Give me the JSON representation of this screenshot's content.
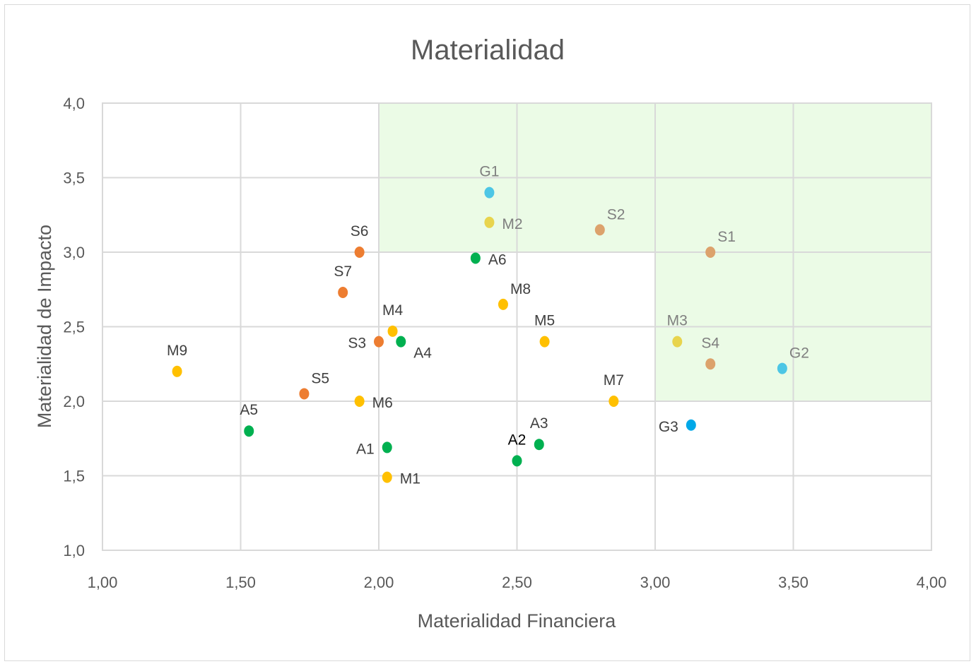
{
  "chart_data": {
    "type": "scatter",
    "title": "Materialidad",
    "xlabel": "Materialidad Financiera",
    "ylabel": "Materialidad de Impacto",
    "xlim": [
      1.0,
      4.0
    ],
    "ylim": [
      1.0,
      4.0
    ],
    "x_ticks": [
      "1,00",
      "1,50",
      "2,00",
      "2,50",
      "3,00",
      "3,50",
      "4,00"
    ],
    "y_ticks": [
      "1,0",
      "1,5",
      "2,0",
      "2,5",
      "3,0",
      "3,5",
      "4,0"
    ],
    "grid": true,
    "legend": "none",
    "highlight_regions": [
      {
        "x_range": [
          2.0,
          4.0
        ],
        "y_range": [
          3.0,
          4.0
        ],
        "color": "#ebfbe6"
      },
      {
        "x_range": [
          3.0,
          4.0
        ],
        "y_range": [
          2.0,
          3.0
        ],
        "color": "#ebfbe6"
      }
    ],
    "colors": {
      "green": "#00b050",
      "yellow_orange": "#ffc000",
      "orange": "#ed7d31",
      "light_yellow": "#e8d44d",
      "tan": "#dca26c",
      "light_blue": "#4dc6e5",
      "blue": "#00a8e8",
      "label_dark": "#404040",
      "label_muted": "#7f7f7f"
    },
    "points": [
      {
        "label": "G1",
        "x": 2.4,
        "y": 3.4,
        "color": "#4dc6e5",
        "label_pos": "top",
        "label_color": "#7f7f7f"
      },
      {
        "label": "M2",
        "x": 2.4,
        "y": 3.2,
        "color": "#e8d44d",
        "label_pos": "right",
        "label_color": "#7f7f7f"
      },
      {
        "label": "S2",
        "x": 2.8,
        "y": 3.15,
        "color": "#dca26c",
        "label_pos": "top-right",
        "label_color": "#7f7f7f"
      },
      {
        "label": "S1",
        "x": 3.2,
        "y": 3.0,
        "color": "#dca26c",
        "label_pos": "top-right",
        "label_color": "#7f7f7f"
      },
      {
        "label": "S6",
        "x": 1.93,
        "y": 3.0,
        "color": "#ed7d31",
        "label_pos": "top",
        "label_color": "#404040"
      },
      {
        "label": "A6",
        "x": 2.35,
        "y": 2.96,
        "color": "#00b050",
        "label_pos": "right",
        "label_color": "#404040"
      },
      {
        "label": "S7",
        "x": 1.87,
        "y": 2.73,
        "color": "#ed7d31",
        "label_pos": "top",
        "label_color": "#404040"
      },
      {
        "label": "M8",
        "x": 2.45,
        "y": 2.65,
        "color": "#ffc000",
        "label_pos": "top-right",
        "label_color": "#404040"
      },
      {
        "label": "M4",
        "x": 2.05,
        "y": 2.47,
        "color": "#ffc000",
        "label_pos": "top",
        "label_color": "#404040"
      },
      {
        "label": "M5",
        "x": 2.6,
        "y": 2.4,
        "color": "#ffc000",
        "label_pos": "top",
        "label_color": "#404040"
      },
      {
        "label": "S3",
        "x": 2.0,
        "y": 2.4,
        "color": "#ed7d31",
        "label_pos": "left",
        "label_color": "#404040"
      },
      {
        "label": "A4",
        "x": 2.08,
        "y": 2.4,
        "color": "#00b050",
        "label_pos": "bottom-right",
        "label_color": "#404040"
      },
      {
        "label": "M3",
        "x": 3.08,
        "y": 2.4,
        "color": "#e8d44d",
        "label_pos": "top",
        "label_color": "#7f7f7f"
      },
      {
        "label": "S4",
        "x": 3.2,
        "y": 2.25,
        "color": "#dca26c",
        "label_pos": "top",
        "label_color": "#7f7f7f"
      },
      {
        "label": "G2",
        "x": 3.46,
        "y": 2.22,
        "color": "#4dc6e5",
        "label_pos": "top-right",
        "label_color": "#7f7f7f"
      },
      {
        "label": "M9",
        "x": 1.27,
        "y": 2.2,
        "color": "#ffc000",
        "label_pos": "top",
        "label_color": "#404040"
      },
      {
        "label": "S5",
        "x": 1.73,
        "y": 2.05,
        "color": "#ed7d31",
        "label_pos": "top-right",
        "label_color": "#404040"
      },
      {
        "label": "M6",
        "x": 1.93,
        "y": 2.0,
        "color": "#ffc000",
        "label_pos": "right",
        "label_color": "#404040"
      },
      {
        "label": "M7",
        "x": 2.85,
        "y": 2.0,
        "color": "#ffc000",
        "label_pos": "top",
        "label_color": "#404040"
      },
      {
        "label": "G3",
        "x": 3.13,
        "y": 1.84,
        "color": "#00a8e8",
        "label_pos": "left",
        "label_color": "#404040"
      },
      {
        "label": "A5",
        "x": 1.53,
        "y": 1.8,
        "color": "#00b050",
        "label_pos": "top",
        "label_color": "#404040"
      },
      {
        "label": "A3",
        "x": 2.58,
        "y": 1.71,
        "color": "#00b050",
        "label_pos": "top",
        "label_color": "#404040"
      },
      {
        "label": "A1",
        "x": 2.03,
        "y": 1.69,
        "color": "#00b050",
        "label_pos": "left",
        "label_color": "#404040"
      },
      {
        "label": "A2",
        "x": 2.5,
        "y": 1.6,
        "color": "#00b050",
        "label_pos": "top",
        "label_color": "#000000"
      },
      {
        "label": "M1",
        "x": 2.03,
        "y": 1.49,
        "color": "#ffc000",
        "label_pos": "right",
        "label_color": "#404040"
      }
    ]
  }
}
